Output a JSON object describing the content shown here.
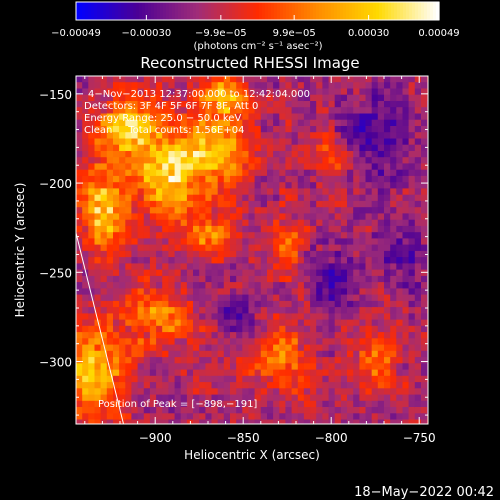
{
  "chart_data": {
    "type": "heatmap",
    "title": "Reconstructed RHESSI Image",
    "xlabel": "Heliocentric X (arcsec)",
    "ylabel": "Heliocentric Y (arcsec)",
    "xlim": [
      -945,
      -745
    ],
    "ylim": [
      -335,
      -140
    ],
    "x_ticks": [
      -900,
      -850,
      -800,
      -750
    ],
    "x_tick_labels": [
      "−900",
      "−850",
      "−800",
      "−750"
    ],
    "y_ticks": [
      -150,
      -200,
      -250,
      -300
    ],
    "y_tick_labels": [
      "−150",
      "−200",
      "−250",
      "−300"
    ],
    "colorbar": {
      "ticks": [
        -0.00049,
        -0.0003,
        -9.9e-05,
        9.9e-05,
        0.0003,
        0.00049
      ],
      "tick_labels": [
        "−0.00049",
        "−0.00030",
        "−9.9e−05",
        "9.9e−05",
        "0.00030",
        "0.00049"
      ],
      "unit_label": "(photons cm⁻² s⁻¹ asec⁻²)",
      "colormap": [
        "#0000ff",
        "#4b0096",
        "#a02c78",
        "#ff2b00",
        "#ff8c00",
        "#ffd900",
        "#ffffff"
      ]
    },
    "peak": {
      "x": -898,
      "y": -191
    },
    "limb_line": {
      "x": [
        -945,
        -918
      ],
      "y": [
        -228,
        -335
      ]
    },
    "blobs": [
      {
        "x": -893,
        "y": -195,
        "amp": 1.0,
        "rx": 18,
        "ry": 20
      },
      {
        "x": -915,
        "y": -170,
        "amp": 0.85,
        "rx": 18,
        "ry": 16
      },
      {
        "x": -865,
        "y": -180,
        "amp": 0.8,
        "rx": 16,
        "ry": 20
      },
      {
        "x": -860,
        "y": -150,
        "amp": 0.7,
        "rx": 12,
        "ry": 10
      },
      {
        "x": -930,
        "y": -215,
        "amp": 0.75,
        "rx": 14,
        "ry": 24
      },
      {
        "x": -870,
        "y": -230,
        "amp": 0.55,
        "rx": 14,
        "ry": 12
      },
      {
        "x": -825,
        "y": -235,
        "amp": 0.45,
        "rx": 10,
        "ry": 14
      },
      {
        "x": -935,
        "y": -305,
        "amp": 0.75,
        "rx": 18,
        "ry": 25
      },
      {
        "x": -900,
        "y": -275,
        "amp": 0.5,
        "rx": 20,
        "ry": 15
      },
      {
        "x": -830,
        "y": -295,
        "amp": 0.45,
        "rx": 18,
        "ry": 22
      },
      {
        "x": -775,
        "y": -300,
        "amp": 0.45,
        "rx": 12,
        "ry": 15
      },
      {
        "x": -800,
        "y": -185,
        "amp": 0.35,
        "rx": 10,
        "ry": 12
      }
    ],
    "dark_regions": [
      {
        "x": -775,
        "y": -175,
        "rx": 22,
        "ry": 30
      },
      {
        "x": -850,
        "y": -275,
        "rx": 14,
        "ry": 14
      },
      {
        "x": -800,
        "y": -255,
        "rx": 15,
        "ry": 18
      },
      {
        "x": -760,
        "y": -240,
        "rx": 12,
        "ry": 20
      }
    ]
  },
  "info": {
    "time_range": "4−Nov−2013 12:37:00.000 to 12:42:04.000",
    "detectors": "Detectors: 3F 4F 5F 6F 7F 8F, Att 0",
    "energy": "Energy Range: 25.0 − 50.0 keV",
    "clean": "Clean     Total counts: 1.56E+04",
    "peak_text": "Position of Peak = [−898,−191]"
  },
  "footer": {
    "timestamp": "18−May−2022 00:42"
  }
}
